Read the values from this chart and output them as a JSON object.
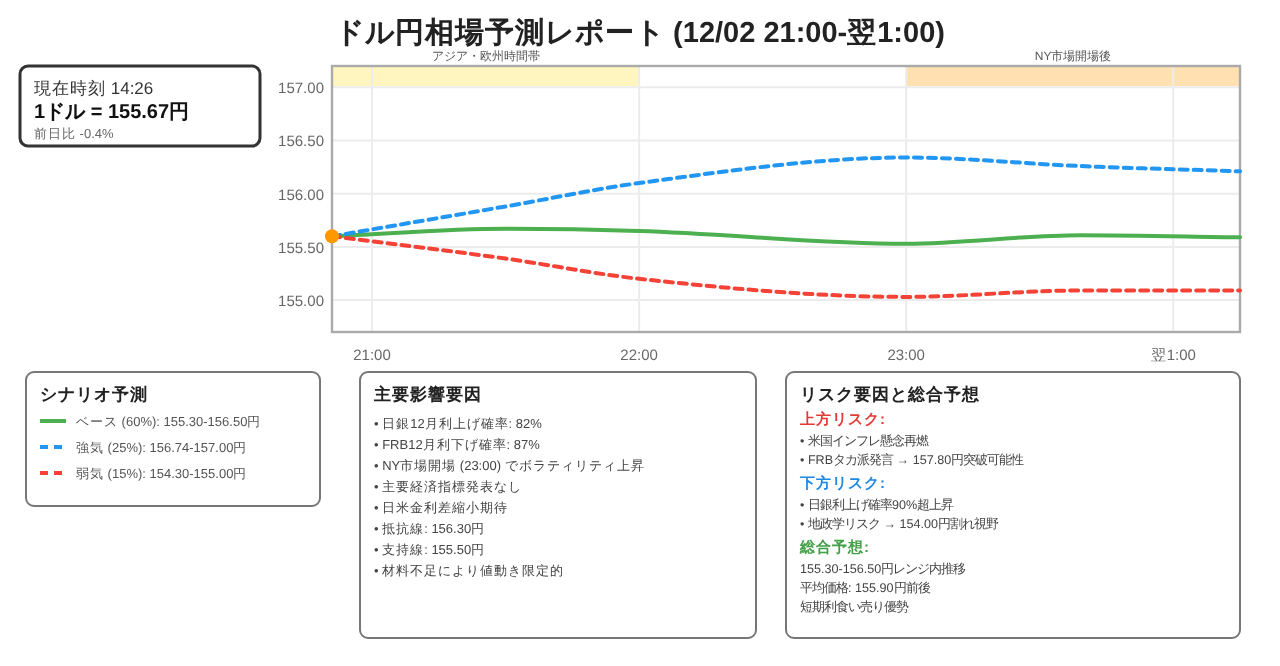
{
  "chart_data": {
    "type": "line",
    "title": "ドル円相場予測レポート (12/02 21:00-翌1:00)",
    "x": [
      20.85,
      21.5,
      22,
      23,
      23.65,
      24.25
    ],
    "xlim": [
      20.85,
      24.25
    ],
    "xticks": [
      {
        "value": 21,
        "label": "21:00"
      },
      {
        "value": 22,
        "label": "22:00"
      },
      {
        "value": 23,
        "label": "23:00"
      },
      {
        "value": 24,
        "label": "翌1:00"
      }
    ],
    "ylim": [
      154.7,
      157.2
    ],
    "yticks": [
      {
        "value": 155,
        "label": "155.00"
      },
      {
        "value": 155.5,
        "label": "155.50"
      },
      {
        "value": 156,
        "label": "156.00"
      },
      {
        "value": 156.5,
        "label": "156.50"
      },
      {
        "value": 157,
        "label": "157.00"
      }
    ],
    "grid": true,
    "legend": "bottom left",
    "legend_title": "シナリオ予測",
    "bands": [
      {
        "axis": "x",
        "from": 20.85,
        "to": 22,
        "label": "アジア・欧州時間帯",
        "color": "#fff5bf"
      },
      {
        "axis": "x",
        "from": 23,
        "to": 24.25,
        "label": "NY市場開場後",
        "color": "#ffe0b0"
      }
    ],
    "series": [
      {
        "name": "ベース (60%): 155.30-156.50円",
        "color": "#4caf50",
        "line_style": "solid",
        "marker": "none",
        "values": [
          155.6,
          155.67,
          155.65,
          155.53,
          155.61,
          155.59
        ]
      },
      {
        "name": "強気 (25%): 156.74-157.00円",
        "color": "#2196f3",
        "line_style": "dashed",
        "marker": "none",
        "values": [
          155.6,
          155.88,
          156.1,
          156.34,
          156.26,
          156.21
        ]
      },
      {
        "name": "弱気 (15%): 154.30-155.00円",
        "color": "#f44336",
        "line_style": "dashed",
        "marker": "none",
        "values": [
          155.6,
          155.39,
          155.2,
          155.03,
          155.09,
          155.09
        ]
      },
      {
        "type": "scatter",
        "color": "#ff9800",
        "marker": "circle",
        "x": [
          20.85
        ],
        "values": [
          155.6
        ]
      }
    ],
    "annotations": [
      "現在時刻 14:26",
      "1ドル = 155.67円",
      "前日比 -0.4%",
      "主要影響要因",
      "• 日銀12月利上げ確率: 82%",
      "• FRB12月利下げ確率: 87%",
      "• NY市場開場 (23:00) でボラティリティ上昇",
      "• 主要経済指標発表なし",
      "• 日米金利差縮小期待",
      "• 抵抗線: 156.30円",
      "• 支持線: 155.50円",
      "• 材料不足により値動き限定的",
      "リスク要因と総合予想",
      "上方リスク:",
      "• 米国インフレ懸念再燃",
      "• FRBタカ派発言 → 157.80円突破可能性",
      "下方リスク:",
      "• 日銀利上げ確率90%超上昇",
      "• 地政学リスク → 154.00円割れ視野",
      "総合予想:",
      "155.30-156.50円レンジ内推移",
      "平均価格: 155.90円前後",
      "短期利食い売り優勢"
    ]
  }
}
